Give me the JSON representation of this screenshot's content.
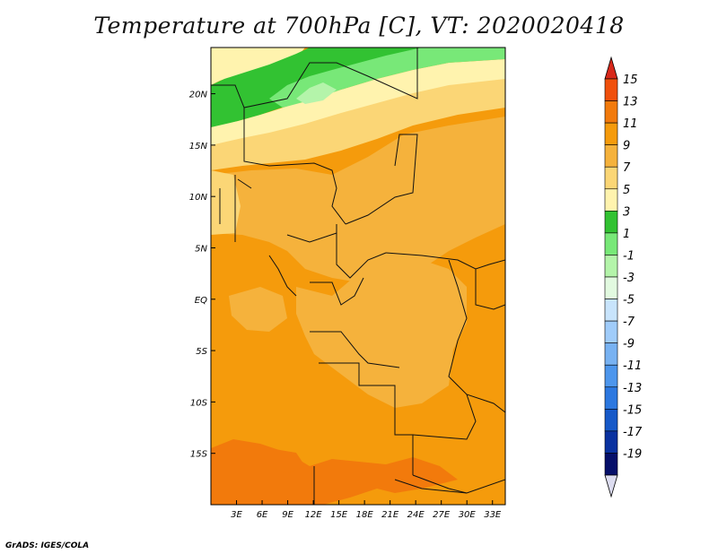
{
  "title": "Temperature at 700hPa [C], VT: 2020020418",
  "footer": "GrADS: IGES/COLA",
  "map": {
    "lon_range": [
      0,
      34.5
    ],
    "lat_range": [
      -20,
      24.5
    ],
    "lon_ticks": [
      "3E",
      "6E",
      "9E",
      "12E",
      "15E",
      "18E",
      "21E",
      "24E",
      "27E",
      "30E",
      "33E"
    ],
    "lat_ticks": [
      "20N",
      "15N",
      "10N",
      "5N",
      "EQ",
      "5S",
      "10S",
      "15S"
    ]
  },
  "colorbar": {
    "labels": [
      "15",
      "13",
      "11",
      "9",
      "7",
      "5",
      "3",
      "1",
      "-1",
      "-3",
      "-5",
      "-7",
      "-9",
      "-11",
      "-13",
      "-15",
      "-17",
      "-19"
    ],
    "colors": [
      "#d8281a",
      "#f0500c",
      "#f27a0c",
      "#f59b0c",
      "#f5b23c",
      "#fbd676",
      "#fff3ae",
      "#32c232",
      "#78e878",
      "#b4f4aa",
      "#e2fae0",
      "#c8e4fc",
      "#a0ccfa",
      "#78b2f2",
      "#4d96ec",
      "#2c78e0",
      "#1659c8",
      "#0a32a0",
      "#06106a"
    ],
    "low_color": "#dcdcf0",
    "high_color": "#d8281a"
  }
}
